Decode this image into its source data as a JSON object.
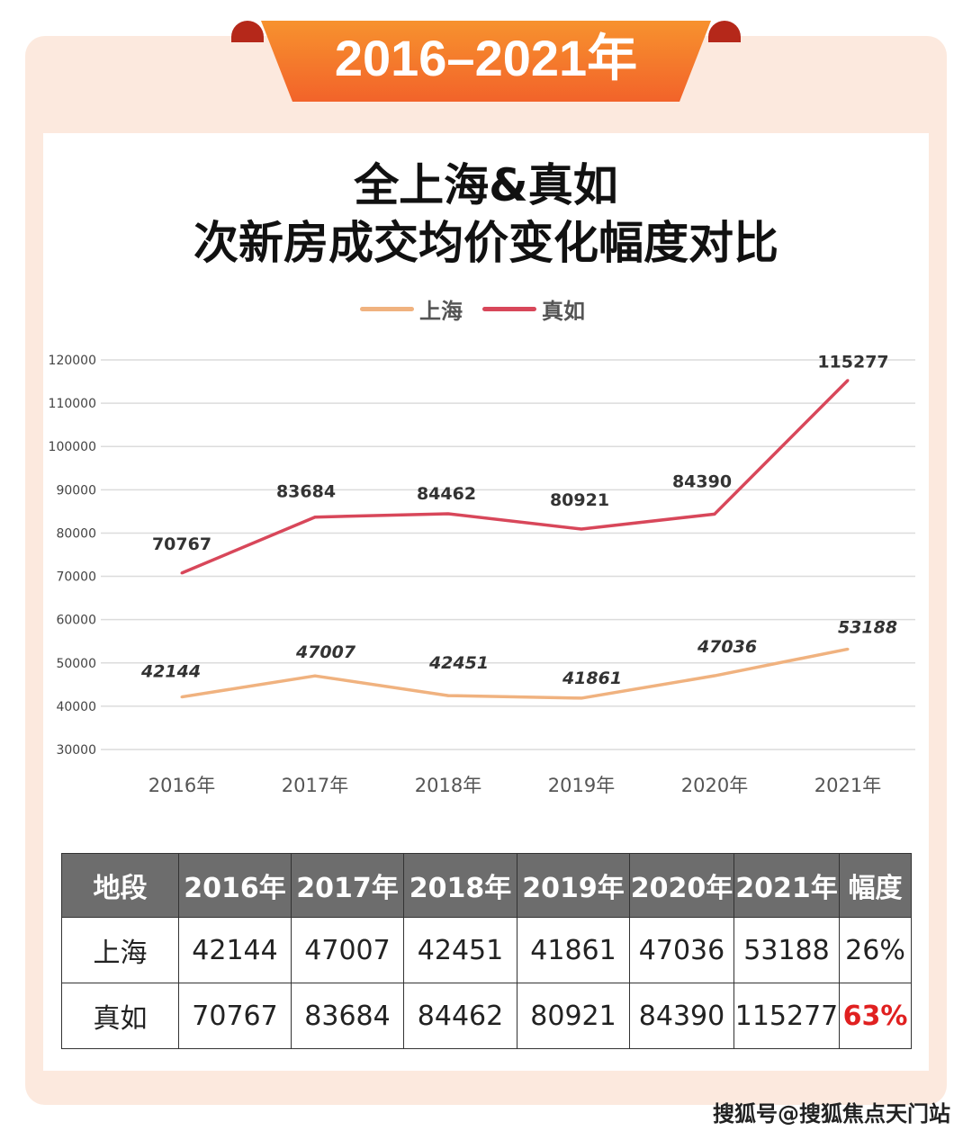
{
  "banner": "2016–2021年",
  "title_line1": "全上海&真如",
  "title_line2": "次新房成交均价变化幅度对比",
  "chart_data": {
    "type": "line",
    "categories": [
      "2016年",
      "2017年",
      "2018年",
      "2019年",
      "2020年",
      "2021年"
    ],
    "yticks": [
      30000,
      40000,
      50000,
      60000,
      70000,
      80000,
      90000,
      100000,
      110000,
      120000
    ],
    "ylim": [
      30000,
      120000
    ],
    "grid": true,
    "legend": "top",
    "series": [
      {
        "name": "上海",
        "color": "#f0b27f",
        "values": [
          42144,
          47007,
          42451,
          41861,
          47036,
          53188
        ]
      },
      {
        "name": "真如",
        "color": "#d8475a",
        "values": [
          70767,
          83684,
          84462,
          80921,
          84390,
          115277
        ]
      }
    ]
  },
  "table": {
    "headers": [
      "地段",
      "2016年",
      "2017年",
      "2018年",
      "2019年",
      "2020年",
      "2021年",
      "幅度"
    ],
    "rows": [
      [
        "上海",
        "42144",
        "47007",
        "42451",
        "41861",
        "47036",
        "53188",
        "26%"
      ],
      [
        "真如",
        "70767",
        "83684",
        "84462",
        "80921",
        "84390",
        "115277",
        "63%"
      ]
    ],
    "highlight_color": "#e02020"
  },
  "watermark": "搜狐号@搜狐焦点天门站"
}
